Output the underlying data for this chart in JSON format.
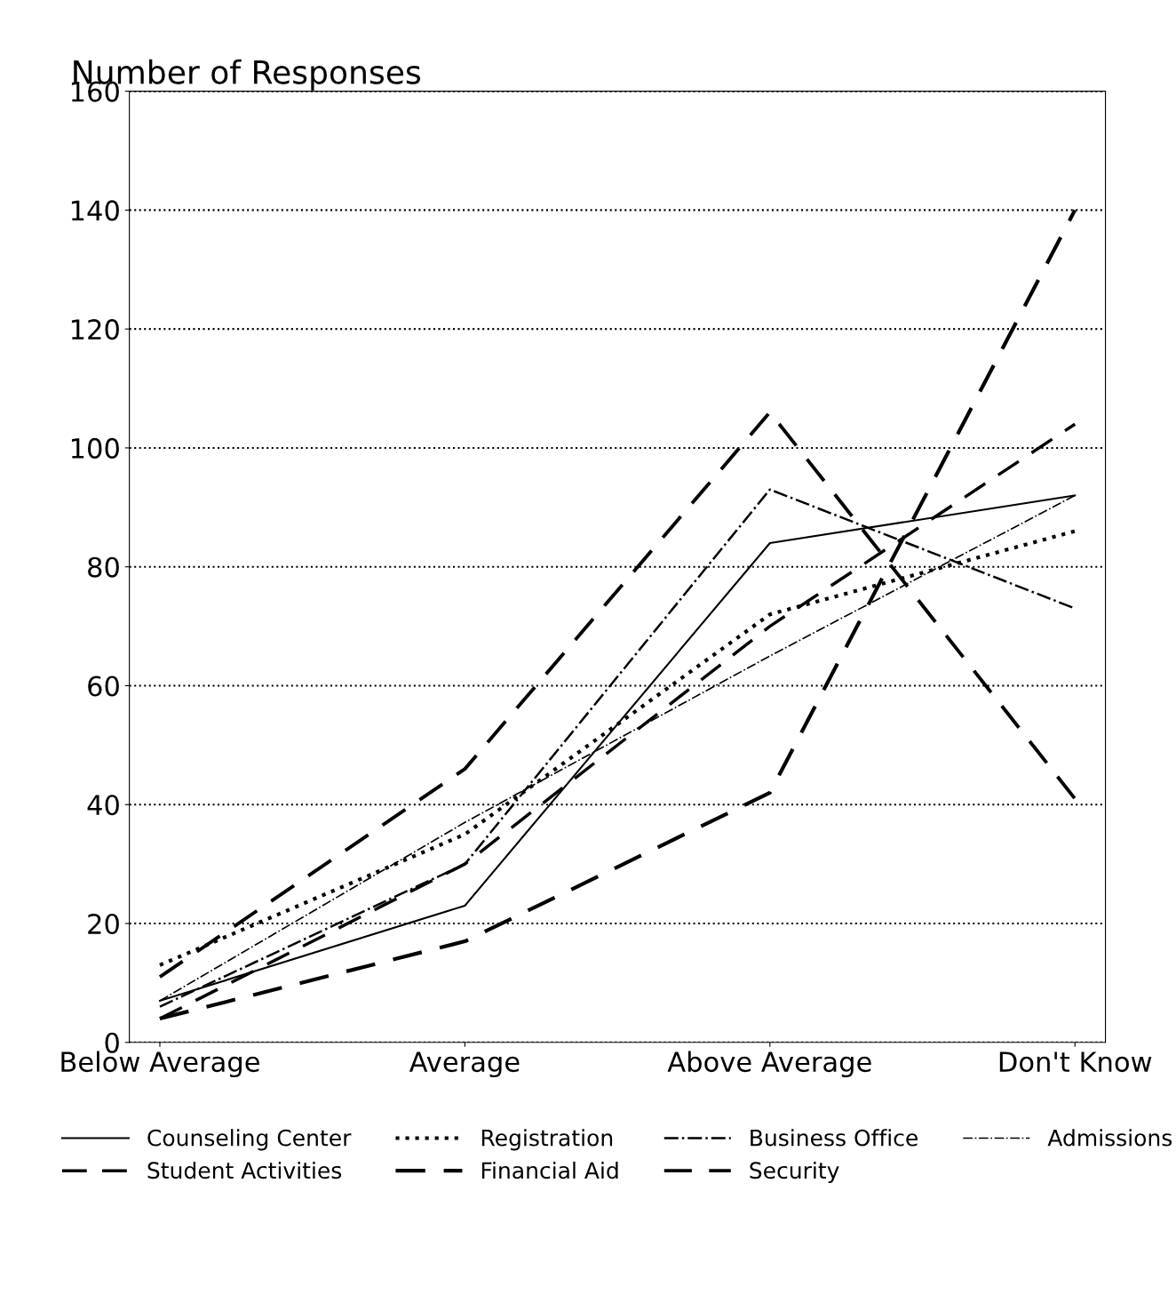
{
  "chart_data": {
    "type": "line",
    "ylabel": "Number of Responses",
    "categories": [
      "Below Average",
      "Average",
      "Above Average",
      "Don't Know"
    ],
    "series": [
      {
        "name": "Counseling Center",
        "color": "#000000",
        "line_style": "solid",
        "values": [
          7,
          23,
          84,
          92
        ]
      },
      {
        "name": "Student Activities",
        "color": "#000000",
        "line_style": "dashed",
        "values": [
          4,
          30,
          70,
          104
        ]
      },
      {
        "name": "Registration",
        "color": "#000000",
        "line_style": "dotted",
        "values": [
          13,
          35,
          72,
          86
        ]
      },
      {
        "name": "Financial Aid",
        "color": "#000000",
        "line_style": "dashed",
        "values": [
          4,
          17,
          42,
          140
        ]
      },
      {
        "name": "Business Office",
        "color": "#000000",
        "line_style": "dashdot",
        "values": [
          6,
          30,
          93,
          73
        ]
      },
      {
        "name": "Security",
        "color": "#000000",
        "line_style": "dashed",
        "values": [
          11,
          46,
          106,
          41
        ]
      },
      {
        "name": "Admissions",
        "color": "#000000",
        "line_style": "dashdot",
        "values": [
          7,
          37,
          65,
          92
        ]
      }
    ],
    "ylim": [
      0,
      160
    ],
    "yticks": [
      0,
      20,
      40,
      60,
      80,
      100,
      120,
      140,
      160
    ],
    "grid": "y",
    "legend": "bottom",
    "marker": "none"
  }
}
